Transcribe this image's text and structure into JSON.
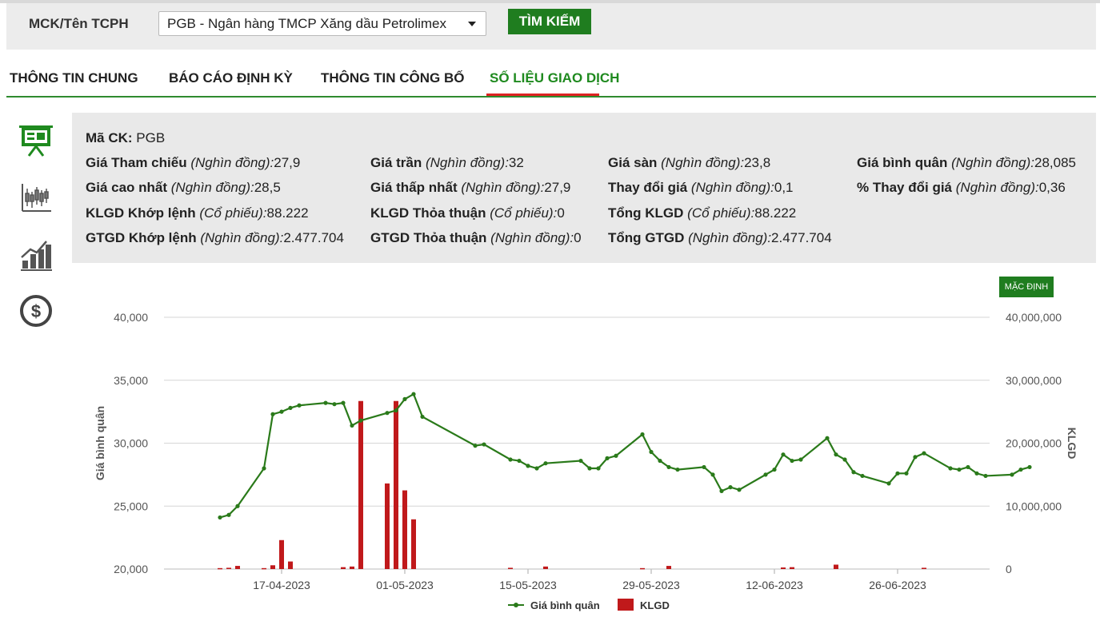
{
  "search": {
    "label": "MCK/Tên TCPH",
    "selected": "PGB - Ngân hàng TMCP Xăng dầu Petrolimex",
    "button": "TÌM KIẾM"
  },
  "tabs": [
    {
      "label": "THÔNG TIN CHUNG"
    },
    {
      "label": "BÁO CÁO ĐỊNH KỲ"
    },
    {
      "label": "THÔNG TIN CÔNG BỐ"
    },
    {
      "label": "SỐ LIỆU GIAO DỊCH"
    }
  ],
  "sidebar_icons": [
    "presentation-icon",
    "candlestick-chart-icon",
    "growth-chart-icon",
    "dollar-coin-icon"
  ],
  "info": {
    "code_label": "Mã CK:",
    "code_value": "PGB",
    "rows": [
      [
        {
          "label": "Giá Tham chiếu",
          "unit": "(Nghìn đồng):",
          "value": "27,9"
        },
        {
          "label": "Giá trần",
          "unit": "(Nghìn đồng):",
          "value": "32"
        },
        {
          "label": "Giá sàn",
          "unit": "(Nghìn đồng):",
          "value": "23,8"
        },
        {
          "label": "Giá bình quân",
          "unit": "(Nghìn đồng):",
          "value": "28,085"
        }
      ],
      [
        {
          "label": "Giá cao nhất",
          "unit": "(Nghìn đồng):",
          "value": "28,5"
        },
        {
          "label": "Giá thấp nhất",
          "unit": "(Nghìn đồng):",
          "value": "27,9"
        },
        {
          "label": "Thay đổi giá",
          "unit": "(Nghìn đồng):",
          "value": "0,1"
        },
        {
          "label": "% Thay đổi giá",
          "unit": "(Nghìn đồng):",
          "value": "0,36"
        }
      ],
      [
        {
          "label": "KLGD Khớp lệnh",
          "unit": "(Cổ phiếu):",
          "value": "88.222"
        },
        {
          "label": "KLGD Thỏa thuận",
          "unit": "(Cổ phiếu):",
          "value": "0"
        },
        {
          "label": "Tổng KLGD",
          "unit": "(Cổ phiếu):",
          "value": "88.222"
        }
      ],
      [
        {
          "label": "GTGD Khớp lệnh",
          "unit": "(Nghìn đồng):",
          "value": "2.477.704"
        },
        {
          "label": "GTGD Thỏa thuận",
          "unit": "(Nghìn đồng):",
          "value": "0"
        },
        {
          "label": "Tổng GTGD",
          "unit": "(Nghìn đồng):",
          "value": "2.477.704"
        }
      ]
    ]
  },
  "default_button": "MẶC ĐỊNH",
  "colors": {
    "accent_green": "#1f7d1f",
    "line": "#2a7a1a",
    "bar": "#c0191b",
    "active_tab_underline": "#dd2222"
  },
  "chart_data": {
    "type": "line+bar",
    "ylabel_left": "Giá bình quân",
    "ylabel_right": "KLGD",
    "ylim_left": [
      20000,
      40000
    ],
    "ylim_right": [
      0,
      40000000
    ],
    "yticks_left": [
      "20,000",
      "25,000",
      "30,000",
      "35,000",
      "40,000"
    ],
    "yticks_right": [
      "0",
      "10,000,000",
      "20,000,000",
      "30,000,000",
      "40,000,000"
    ],
    "xticks": [
      "17-04-2023",
      "01-05-2023",
      "15-05-2023",
      "29-05-2023",
      "12-06-2023",
      "26-06-2023"
    ],
    "x_range": [
      "2023-04-08",
      "2023-07-09"
    ],
    "legend": [
      "Giá bình quân",
      "KLGD"
    ],
    "price_series": [
      [
        "2023-04-10",
        24100
      ],
      [
        "2023-04-11",
        24300
      ],
      [
        "2023-04-12",
        25000
      ],
      [
        "2023-04-15",
        28000
      ],
      [
        "2023-04-16",
        32300
      ],
      [
        "2023-04-17",
        32500
      ],
      [
        "2023-04-18",
        32800
      ],
      [
        "2023-04-19",
        33000
      ],
      [
        "2023-04-22",
        33200
      ],
      [
        "2023-04-23",
        33100
      ],
      [
        "2023-04-24",
        33200
      ],
      [
        "2023-04-25",
        31400
      ],
      [
        "2023-04-26",
        31800
      ],
      [
        "2023-04-29",
        32400
      ],
      [
        "2023-04-30",
        32600
      ],
      [
        "2023-05-01",
        33500
      ],
      [
        "2023-05-02",
        33900
      ],
      [
        "2023-05-03",
        32100
      ],
      [
        "2023-05-09",
        29800
      ],
      [
        "2023-05-10",
        29900
      ],
      [
        "2023-05-13",
        28700
      ],
      [
        "2023-05-14",
        28600
      ],
      [
        "2023-05-15",
        28200
      ],
      [
        "2023-05-16",
        28000
      ],
      [
        "2023-05-17",
        28400
      ],
      [
        "2023-05-21",
        28600
      ],
      [
        "2023-05-22",
        28000
      ],
      [
        "2023-05-23",
        28000
      ],
      [
        "2023-05-24",
        28800
      ],
      [
        "2023-05-25",
        29000
      ],
      [
        "2023-05-28",
        30700
      ],
      [
        "2023-05-29",
        29300
      ],
      [
        "2023-05-30",
        28600
      ],
      [
        "2023-05-31",
        28100
      ],
      [
        "2023-06-01",
        27900
      ],
      [
        "2023-06-04",
        28100
      ],
      [
        "2023-06-05",
        27500
      ],
      [
        "2023-06-06",
        26200
      ],
      [
        "2023-06-07",
        26500
      ],
      [
        "2023-06-08",
        26300
      ],
      [
        "2023-06-11",
        27500
      ],
      [
        "2023-06-12",
        27900
      ],
      [
        "2023-06-13",
        29100
      ],
      [
        "2023-06-14",
        28600
      ],
      [
        "2023-06-15",
        28700
      ],
      [
        "2023-06-18",
        30400
      ],
      [
        "2023-06-19",
        29100
      ],
      [
        "2023-06-20",
        28700
      ],
      [
        "2023-06-21",
        27700
      ],
      [
        "2023-06-22",
        27400
      ],
      [
        "2023-06-25",
        26800
      ],
      [
        "2023-06-26",
        27600
      ],
      [
        "2023-06-27",
        27600
      ],
      [
        "2023-06-28",
        28900
      ],
      [
        "2023-06-29",
        29200
      ],
      [
        "2023-07-02",
        28000
      ],
      [
        "2023-07-03",
        27900
      ],
      [
        "2023-07-04",
        28100
      ],
      [
        "2023-07-05",
        27600
      ],
      [
        "2023-07-06",
        27400
      ],
      [
        "2023-07-09",
        27500
      ],
      [
        "2023-07-10",
        27900
      ],
      [
        "2023-07-11",
        28100
      ]
    ],
    "volume_series": [
      [
        "2023-04-10",
        150000
      ],
      [
        "2023-04-11",
        200000
      ],
      [
        "2023-04-12",
        500000
      ],
      [
        "2023-04-15",
        150000
      ],
      [
        "2023-04-16",
        600000
      ],
      [
        "2023-04-17",
        4600000
      ],
      [
        "2023-04-18",
        1200000
      ],
      [
        "2023-04-24",
        300000
      ],
      [
        "2023-04-25",
        400000
      ],
      [
        "2023-04-26",
        26700000
      ],
      [
        "2023-04-29",
        13600000
      ],
      [
        "2023-04-30",
        26700000
      ],
      [
        "2023-05-01",
        12500000
      ],
      [
        "2023-05-02",
        7900000
      ],
      [
        "2023-05-13",
        200000
      ],
      [
        "2023-05-17",
        400000
      ],
      [
        "2023-05-28",
        150000
      ],
      [
        "2023-05-31",
        500000
      ],
      [
        "2023-06-13",
        250000
      ],
      [
        "2023-06-14",
        300000
      ],
      [
        "2023-06-19",
        700000
      ],
      [
        "2023-06-29",
        200000
      ]
    ]
  }
}
